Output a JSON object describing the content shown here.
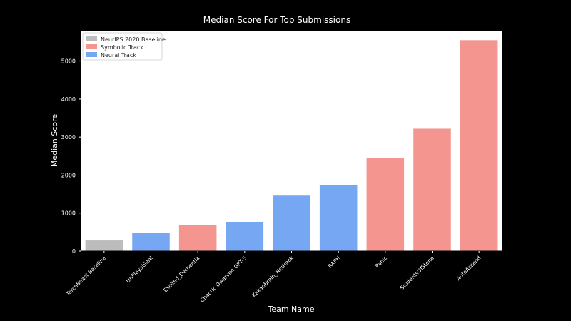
{
  "chart_data": {
    "type": "bar",
    "title": "Median Score For Top Submissions",
    "xlabel": "Team Name",
    "ylabel": "Median Score",
    "categories": [
      "TorchBeast Baseline",
      "UnPlayableAI",
      "Excited_Dementia",
      "Chaotic Dwarven GPT-5",
      "KakaoBrain_NetHack",
      "RAPH",
      "Panic",
      "StudentsOfStone",
      "AutoAscend"
    ],
    "values": [
      280,
      480,
      690,
      770,
      1460,
      1730,
      2440,
      3220,
      5550
    ],
    "groups": [
      "NeurIPS 2020 Baseline",
      "Neural Track",
      "Symbolic Track",
      "Neural Track",
      "Neural Track",
      "Neural Track",
      "Symbolic Track",
      "Symbolic Track",
      "Symbolic Track"
    ],
    "legend": [
      {
        "name": "NeurIPS 2020 Baseline",
        "color": "#bcbcbc"
      },
      {
        "name": "Symbolic Track",
        "color": "#f4958f"
      },
      {
        "name": "Neural Track",
        "color": "#76a7f2"
      }
    ],
    "yticks": [
      0,
      1000,
      2000,
      3000,
      4000,
      5000
    ],
    "ylim": [
      0,
      5800
    ],
    "legend_position": "top-left",
    "grid": false,
    "background": "#000000",
    "plot_background": "#ffffff"
  }
}
